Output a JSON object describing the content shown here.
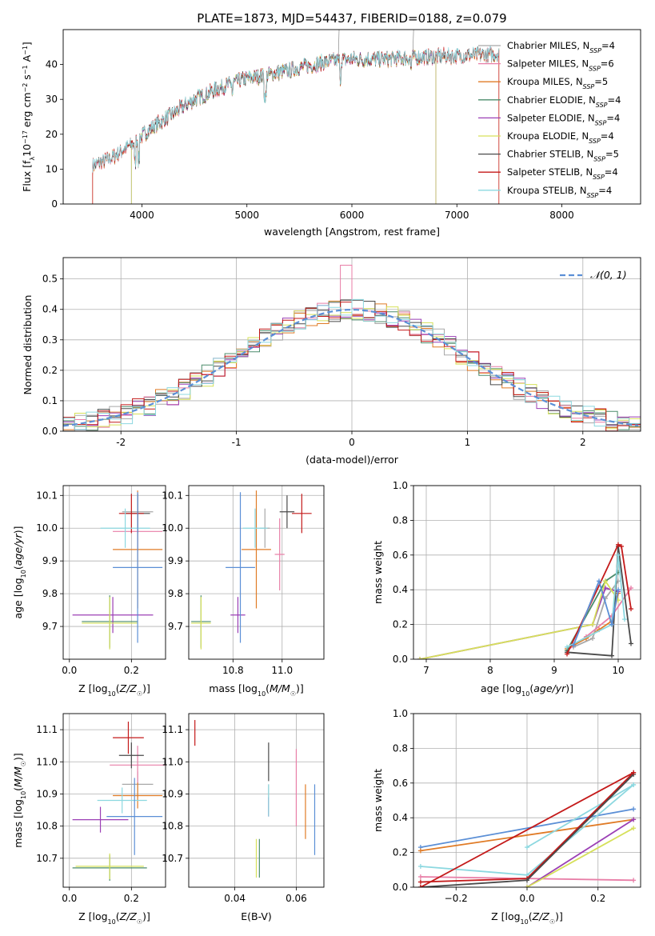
{
  "figure": {
    "title": "PLATE=1873, MJD=54437, FIBERID=0188, z=0.079"
  },
  "colors": {
    "Chabrier MILES": "#a8a8a8",
    "Salpeter MILES": "#e87ea7",
    "Kroupa MILES": "#e07b26",
    "Chabrier ELODIE": "#4c8c6c",
    "Salpeter ELODIE": "#9b3fb5",
    "Kroupa ELODIE": "#d6e05a",
    "Chabrier STELIB": "#4a4a4a",
    "Salpeter STELIB": "#c41a1a",
    "Kroupa STELIB": "#8cd8e0",
    "normal": "#5b8fd6",
    "grid": "#b0b0b0"
  },
  "chart_data": [
    {
      "id": "spectrum",
      "type": "line",
      "xlabel": "wavelength [Angstrom, rest frame]",
      "ylabel": "Flux [f_λ10^-17 erg cm^-2 s^-1 A^-1]",
      "xlim": [
        3250,
        8750
      ],
      "ylim": [
        0,
        50
      ],
      "xticks": [
        4000,
        5000,
        6000,
        7000,
        8000
      ],
      "yticks": [
        0,
        10,
        20,
        30,
        40
      ],
      "grid": false,
      "legend_position": "right",
      "series": [
        {
          "name": "Chabrier MILES, NSSP=4",
          "color": "#a8a8a8"
        },
        {
          "name": "Salpeter MILES, NSSP=6",
          "color": "#e87ea7"
        },
        {
          "name": "Kroupa MILES, NSSP=5",
          "color": "#e07b26"
        },
        {
          "name": "Chabrier ELODIE, NSSP=4",
          "color": "#4c8c6c"
        },
        {
          "name": "Salpeter ELODIE, NSSP=4",
          "color": "#9b3fb5"
        },
        {
          "name": "Kroupa ELODIE, NSSP=4",
          "color": "#d6e05a"
        },
        {
          "name": "Chabrier STELIB, NSSP=5",
          "color": "#4a4a4a"
        },
        {
          "name": "Salpeter STELIB, NSSP=4",
          "color": "#c41a1a"
        },
        {
          "name": "Kroupa STELIB, NSSP=4",
          "color": "#8cd8e0"
        }
      ],
      "continuum": {
        "x": [
          3530,
          3700,
          3900,
          4100,
          4300,
          4500,
          4800,
          5000,
          5200,
          5500,
          5800,
          6000,
          6300,
          6600,
          7000,
          7400
        ],
        "y": [
          11,
          13,
          17,
          22,
          26,
          30,
          34,
          36,
          37,
          39,
          41,
          41.5,
          41.5,
          42,
          42.5,
          43
        ]
      }
    },
    {
      "id": "residuals",
      "type": "line",
      "xlabel": "(data-model)/error",
      "ylabel": "Normed distribution",
      "xlim": [
        -2.5,
        2.5
      ],
      "ylim": [
        0,
        0.57
      ],
      "xticks": [
        -2,
        -1,
        0,
        1,
        2
      ],
      "yticks": [
        0.0,
        0.1,
        0.2,
        0.3,
        0.4,
        0.5
      ],
      "grid": true,
      "legend": [
        "𝒩(0, 1)"
      ],
      "legend_position": "top-right",
      "bin_width": 0.1
    },
    {
      "id": "age-vs-Z",
      "type": "scatter",
      "xlabel": "Z [log10(Z/Z☉)]",
      "ylabel": "age  [log10(age/yr)]",
      "xlim": [
        -0.02,
        0.31
      ],
      "ylim": [
        9.6,
        10.13
      ],
      "xticks": [
        0.0,
        0.2
      ],
      "yticks": [
        9.7,
        9.8,
        9.9,
        10.0,
        10.1
      ],
      "grid": true,
      "points": [
        {
          "model": "Chabrier MILES",
          "x": 0.22,
          "y": 10.05,
          "xe": 0.05,
          "ye": 0.05
        },
        {
          "model": "Salpeter MILES",
          "x": 0.22,
          "y": 9.99,
          "xe": 0.08,
          "ye": 0.06
        },
        {
          "model": "Kroupa MILES",
          "x": 0.22,
          "y": 9.935,
          "xe": 0.08,
          "ye": 0.18
        },
        {
          "model": "Chabrier ELODIE",
          "x": 0.13,
          "y": 9.715,
          "xe": 0.09,
          "ye": 0.08
        },
        {
          "model": "Salpeter ELODIE",
          "x": 0.14,
          "y": 9.735,
          "xe": 0.13,
          "ye": 0.055
        },
        {
          "model": "Kroupa ELODIE",
          "x": 0.13,
          "y": 9.71,
          "xe": 0.09,
          "ye": 0.08
        },
        {
          "model": "Chabrier STELIB",
          "x": 0.22,
          "y": 10.045,
          "xe": 0.04,
          "ye": 0.06
        },
        {
          "model": "Salpeter STELIB",
          "x": 0.2,
          "y": 10.045,
          "xe": 0.04,
          "ye": 0.06
        },
        {
          "model": "Kroupa STELIB",
          "x": 0.18,
          "y": 10.0,
          "xe": 0.08,
          "ye": 0.06
        },
        {
          "model": "Kroupa MILES",
          "x": 0.22,
          "y": 9.88,
          "xe": 0.08,
          "ye": 0.23,
          "blue": true
        }
      ]
    },
    {
      "id": "age-vs-mass",
      "type": "scatter",
      "xlabel": "mass [log10(M/M☉)]",
      "xlim": [
        10.62,
        11.17
      ],
      "ylim": [
        9.6,
        10.13
      ],
      "xticks": [
        10.8,
        11.0
      ],
      "yticks": [
        9.7,
        9.8,
        9.9,
        10.0,
        10.1
      ],
      "grid": true,
      "points": [
        {
          "model": "Chabrier MILES",
          "x": 10.93,
          "y": 10.0,
          "xe": 0.02,
          "ye": 0.06
        },
        {
          "model": "Salpeter MILES",
          "x": 10.99,
          "y": 9.92,
          "xe": 0.02,
          "ye": 0.11
        },
        {
          "model": "Kroupa MILES",
          "x": 10.895,
          "y": 9.935,
          "xe": 0.06,
          "ye": 0.18
        },
        {
          "model": "Chabrier ELODIE",
          "x": 10.67,
          "y": 9.715,
          "xe": 0.04,
          "ye": 0.08
        },
        {
          "model": "Salpeter ELODIE",
          "x": 10.82,
          "y": 9.735,
          "xe": 0.03,
          "ye": 0.055
        },
        {
          "model": "Kroupa ELODIE",
          "x": 10.67,
          "y": 9.71,
          "xe": 0.04,
          "ye": 0.08
        },
        {
          "model": "Chabrier STELIB",
          "x": 11.02,
          "y": 10.05,
          "xe": 0.03,
          "ye": 0.05
        },
        {
          "model": "Salpeter STELIB",
          "x": 11.08,
          "y": 10.045,
          "xe": 0.04,
          "ye": 0.06
        },
        {
          "model": "Kroupa STELIB",
          "x": 10.89,
          "y": 10.0,
          "xe": 0.05,
          "ye": 0.06
        },
        {
          "model": "normal",
          "x": 10.83,
          "y": 9.88,
          "xe": 0.06,
          "ye": 0.23
        }
      ]
    },
    {
      "id": "mass-weight-vs-age",
      "type": "line",
      "xlabel": "age  [log10(age/yr)]",
      "ylabel": "mass weight",
      "xlim": [
        6.8,
        10.35
      ],
      "ylim": [
        0,
        1.0
      ],
      "xticks": [
        7,
        8,
        9,
        10
      ],
      "yticks": [
        0.0,
        0.2,
        0.4,
        0.6,
        0.8,
        1.0
      ],
      "grid": true,
      "series": [
        {
          "model": "Chabrier MILES",
          "x": [
            9.3,
            9.6,
            9.8,
            10.0
          ],
          "y": [
            0.07,
            0.12,
            0.35,
            0.45
          ]
        },
        {
          "model": "Salpeter MILES",
          "x": [
            9.2,
            9.5,
            9.9,
            10.2
          ],
          "y": [
            0.05,
            0.13,
            0.25,
            0.41
          ]
        },
        {
          "model": "Kroupa MILES",
          "x": [
            9.2,
            9.5,
            9.7,
            9.9,
            10.0
          ],
          "y": [
            0.06,
            0.12,
            0.17,
            0.22,
            0.38
          ]
        },
        {
          "model": "Chabrier ELODIE",
          "x": [
            9.2,
            9.8,
            10.0
          ],
          "y": [
            0.05,
            0.45,
            0.5
          ]
        },
        {
          "model": "Salpeter ELODIE",
          "x": [
            6.9,
            9.6,
            9.8,
            10.0
          ],
          "y": [
            0.0,
            0.2,
            0.41,
            0.39
          ]
        },
        {
          "model": "Kroupa ELODIE",
          "x": [
            6.9,
            9.6,
            9.8,
            10.0
          ],
          "y": [
            0.0,
            0.2,
            0.45,
            0.34
          ]
        },
        {
          "model": "Chabrier STELIB",
          "x": [
            9.2,
            9.9,
            10.0,
            10.2
          ],
          "y": [
            0.04,
            0.02,
            0.65,
            0.09
          ]
        },
        {
          "model": "Salpeter STELIB",
          "x": [
            9.2,
            10.0,
            10.05,
            10.2
          ],
          "y": [
            0.03,
            0.66,
            0.65,
            0.29
          ]
        },
        {
          "model": "Kroupa STELIB",
          "x": [
            9.2,
            9.9,
            10.0,
            10.1
          ],
          "y": [
            0.07,
            0.2,
            0.6,
            0.23
          ]
        },
        {
          "model": "normal",
          "x": [
            9.3,
            9.7,
            9.9,
            10.0
          ],
          "y": [
            0.08,
            0.45,
            0.2,
            0.4
          ]
        }
      ]
    },
    {
      "id": "mass-vs-Z",
      "type": "scatter",
      "xlabel": "Z [log10(Z/Z☉)]",
      "ylabel": "mass [log10(M/M☉)]",
      "xlim": [
        -0.02,
        0.31
      ],
      "ylim": [
        10.61,
        11.15
      ],
      "xticks": [
        0.0,
        0.2
      ],
      "yticks": [
        10.7,
        10.8,
        10.9,
        11.0,
        11.1
      ],
      "grid": true,
      "points": [
        {
          "model": "Chabrier MILES",
          "x": 0.22,
          "y": 10.93,
          "xe": 0.05,
          "ye": 0.04
        },
        {
          "model": "Salpeter MILES",
          "x": 0.22,
          "y": 10.99,
          "xe": 0.09,
          "ye": 0.06
        },
        {
          "model": "Kroupa MILES",
          "x": 0.22,
          "y": 10.895,
          "xe": 0.08,
          "ye": 0.04
        },
        {
          "model": "Chabrier ELODIE",
          "x": 0.13,
          "y": 10.67,
          "xe": 0.12,
          "ye": 0.04
        },
        {
          "model": "Salpeter ELODIE",
          "x": 0.1,
          "y": 10.82,
          "xe": 0.09,
          "ye": 0.04
        },
        {
          "model": "Kroupa ELODIE",
          "x": 0.13,
          "y": 10.675,
          "xe": 0.11,
          "ye": 0.04
        },
        {
          "model": "Chabrier STELIB",
          "x": 0.2,
          "y": 11.02,
          "xe": 0.04,
          "ye": 0.04
        },
        {
          "model": "Salpeter STELIB",
          "x": 0.19,
          "y": 11.075,
          "xe": 0.05,
          "ye": 0.05
        },
        {
          "model": "Kroupa STELIB",
          "x": 0.17,
          "y": 10.88,
          "xe": 0.08,
          "ye": 0.04
        },
        {
          "model": "normal",
          "x": 0.21,
          "y": 10.83,
          "xe": 0.09,
          "ye": 0.12
        }
      ]
    },
    {
      "id": "mass-vs-EBV",
      "type": "scatter",
      "xlabel": "E(B-V)",
      "xlim": [
        0.025,
        0.069
      ],
      "ylim": [
        10.61,
        11.15
      ],
      "xticks": [
        0.04,
        0.06
      ],
      "yticks": [
        10.7,
        10.8,
        10.9,
        11.0,
        11.1
      ],
      "grid": true,
      "points": [
        {
          "model": "Chabrier MILES",
          "x": 0.051,
          "y": 10.88,
          "ye": 0.05
        },
        {
          "model": "Salpeter MILES",
          "x": 0.06,
          "y": 10.92,
          "ye": 0.12
        },
        {
          "model": "Kroupa MILES",
          "x": 0.063,
          "y": 10.845,
          "ye": 0.085
        },
        {
          "model": "Chabrier ELODIE",
          "x": 0.048,
          "y": 10.7,
          "ye": 0.06
        },
        {
          "model": "Salpeter ELODIE",
          "x": 0.051,
          "y": 10.86,
          "ye": 0.03
        },
        {
          "model": "Kroupa ELODIE",
          "x": 0.047,
          "y": 10.7,
          "ye": 0.06
        },
        {
          "model": "Chabrier STELIB",
          "x": 0.051,
          "y": 11.0,
          "ye": 0.06
        },
        {
          "model": "Salpeter STELIB",
          "x": 0.027,
          "y": 11.09,
          "ye": 0.04
        },
        {
          "model": "Kroupa STELIB",
          "x": 0.051,
          "y": 10.88,
          "ye": 0.05
        },
        {
          "model": "normal",
          "x": 0.066,
          "y": 10.82,
          "ye": 0.11
        }
      ]
    },
    {
      "id": "mass-weight-vs-Z",
      "type": "line",
      "xlabel": "Z [log10(Z/Z☉)]",
      "ylabel": "mass weight",
      "xlim": [
        -0.32,
        0.32
      ],
      "ylim": [
        0,
        1.0
      ],
      "xticks": [
        -0.2,
        0.0,
        0.2
      ],
      "yticks": [
        0.0,
        0.2,
        0.4,
        0.6,
        0.8,
        1.0
      ],
      "grid": true,
      "series": [
        {
          "model": "normal",
          "x": [
            -0.3,
            0.3
          ],
          "y": [
            0.23,
            0.45
          ]
        },
        {
          "model": "Kroupa MILES",
          "x": [
            -0.3,
            0.3
          ],
          "y": [
            0.21,
            0.39
          ]
        },
        {
          "model": "Kroupa STELIB",
          "x": [
            -0.3,
            0.0,
            0.3
          ],
          "y": [
            0.12,
            0.07,
            0.59
          ]
        },
        {
          "model": "Kroupa STELIB",
          "x": [
            0.0,
            0.3
          ],
          "y": [
            0.23,
            0.59
          ]
        },
        {
          "model": "Salpeter MILES",
          "x": [
            -0.3,
            0.3
          ],
          "y": [
            0.06,
            0.04
          ]
        },
        {
          "model": "Salpeter ELODIE",
          "x": [
            0.0,
            0.3
          ],
          "y": [
            0.0,
            0.39
          ]
        },
        {
          "model": "Kroupa ELODIE",
          "x": [
            0.0,
            0.3
          ],
          "y": [
            0.0,
            0.34
          ]
        },
        {
          "model": "Salpeter STELIB",
          "x": [
            -0.3,
            0.0,
            0.3
          ],
          "y": [
            0.03,
            0.05,
            0.66
          ]
        },
        {
          "model": "Chabrier STELIB",
          "x": [
            -0.3,
            0.0,
            0.3
          ],
          "y": [
            0.0,
            0.04,
            0.65
          ]
        },
        {
          "model": "Salpeter STELIB",
          "x": [
            -0.3,
            0.3
          ],
          "y": [
            0.0,
            0.66
          ]
        }
      ]
    }
  ]
}
